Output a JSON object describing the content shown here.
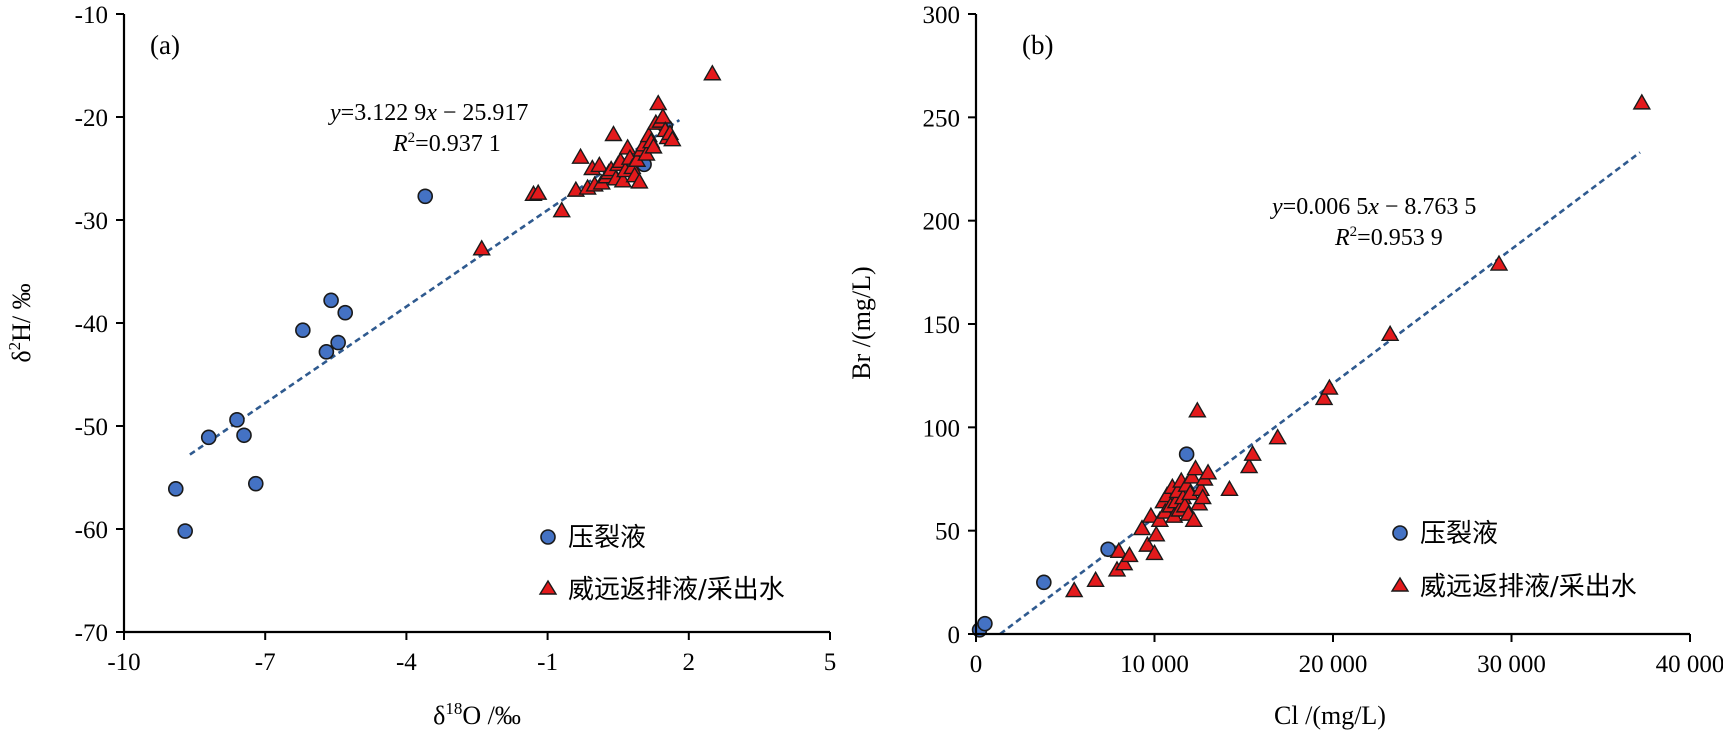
{
  "chart_data": [
    {
      "type": "scatter",
      "panel_label": "(a)",
      "xlabel_parts": {
        "pre": "δ",
        "sup": "18",
        "post": "O /‰"
      },
      "ylabel_parts": {
        "pre": "δ",
        "sup": "2",
        "post": "H/ ‰"
      },
      "xlim": [
        -10,
        5
      ],
      "ylim": [
        -70,
        -10
      ],
      "xticks": [
        -10,
        -7,
        -4,
        -1,
        2,
        5
      ],
      "yticks": [
        -70,
        -60,
        -50,
        -40,
        -30,
        -20,
        -10
      ],
      "equation": {
        "y": "y",
        "rest": "=3.122 9",
        "x": "x",
        "tail": " − 25.917",
        "r": "R",
        "rsup": "2",
        "rval": "=0.937 1"
      },
      "trendline": {
        "slope": 3.1229,
        "intercept": -25.917,
        "x_range": [
          -8.6,
          1.8
        ]
      },
      "legend": [
        {
          "marker": "circle",
          "label": "压裂液"
        },
        {
          "marker": "triangle",
          "label": "威远返排液/采出水"
        }
      ],
      "legend_position": "bottom-right",
      "series": [
        {
          "marker": "circle",
          "color": "#4472C4",
          "points": [
            [
              -8.9,
              -56.1
            ],
            [
              -8.7,
              -60.2
            ],
            [
              -8.2,
              -51.1
            ],
            [
              -7.6,
              -49.4
            ],
            [
              -7.45,
              -50.9
            ],
            [
              -7.2,
              -55.6
            ],
            [
              -6.2,
              -40.7
            ],
            [
              -5.7,
              -42.8
            ],
            [
              -5.6,
              -37.8
            ],
            [
              -5.45,
              -41.9
            ],
            [
              -5.3,
              -39.0
            ],
            [
              -3.6,
              -27.7
            ],
            [
              1.05,
              -24.6
            ],
            [
              1.5,
              -20.9
            ]
          ]
        },
        {
          "marker": "triangle",
          "color": "#E31A1C",
          "points": [
            [
              -2.4,
              -32.8
            ],
            [
              -1.3,
              -27.5
            ],
            [
              -1.2,
              -27.4
            ],
            [
              -0.7,
              -29.1
            ],
            [
              -0.4,
              -27.1
            ],
            [
              -0.3,
              -23.9
            ],
            [
              -0.15,
              -26.9
            ],
            [
              -0.05,
              -25.0
            ],
            [
              0.0,
              -26.6
            ],
            [
              0.1,
              -24.7
            ],
            [
              0.15,
              -26.4
            ],
            [
              0.25,
              -25.8
            ],
            [
              0.3,
              -25.4
            ],
            [
              0.35,
              -25.1
            ],
            [
              0.4,
              -21.7
            ],
            [
              0.45,
              -26.0
            ],
            [
              0.5,
              -24.6
            ],
            [
              0.55,
              -24.3
            ],
            [
              0.6,
              -26.2
            ],
            [
              0.65,
              -25.2
            ],
            [
              0.7,
              -23.0
            ],
            [
              0.75,
              -24.0
            ],
            [
              0.8,
              -24.9
            ],
            [
              0.85,
              -25.7
            ],
            [
              0.9,
              -24.2
            ],
            [
              0.95,
              -26.3
            ],
            [
              1.0,
              -23.2
            ],
            [
              1.05,
              -22.7
            ],
            [
              1.1,
              -23.6
            ],
            [
              1.15,
              -21.8
            ],
            [
              1.2,
              -22.4
            ],
            [
              1.25,
              -22.9
            ],
            [
              1.3,
              -20.6
            ],
            [
              1.35,
              -18.7
            ],
            [
              1.4,
              -20.4
            ],
            [
              1.45,
              -20.0
            ],
            [
              1.5,
              -21.3
            ],
            [
              1.55,
              -22.0
            ],
            [
              1.6,
              -21.6
            ],
            [
              1.65,
              -22.2
            ],
            [
              2.5,
              -15.8
            ]
          ]
        }
      ]
    },
    {
      "type": "scatter",
      "panel_label": "(b)",
      "xlabel": "Cl /(mg/L)",
      "ylabel": "Br /(mg/L)",
      "xlim": [
        0,
        40000
      ],
      "ylim": [
        0,
        300
      ],
      "xticks": [
        0,
        10000,
        20000,
        30000,
        40000
      ],
      "xtick_labels": [
        "0",
        "10 000",
        "20 000",
        "30 000",
        "40 000"
      ],
      "yticks": [
        0,
        50,
        100,
        150,
        200,
        250,
        300
      ],
      "equation": {
        "y": "y",
        "rest": "=0.006 5",
        "x": "x",
        "tail": " − 8.763 5",
        "r": "R",
        "rsup": "2",
        "rval": "=0.953 9"
      },
      "trendline": {
        "slope": 0.0065,
        "intercept": -8.7635,
        "x_range": [
          1350,
          37200
        ]
      },
      "legend": [
        {
          "marker": "circle",
          "label": "压裂液"
        },
        {
          "marker": "triangle",
          "label": "威远返排液/采出水"
        }
      ],
      "legend_position": "bottom-right",
      "series": [
        {
          "marker": "circle",
          "color": "#4472C4",
          "points": [
            [
              200,
              2
            ],
            [
              500,
              5
            ],
            [
              3800,
              25
            ],
            [
              7400,
              41
            ],
            [
              11800,
              87
            ]
          ]
        },
        {
          "marker": "triangle",
          "color": "#E31A1C",
          "points": [
            [
              5500,
              21
            ],
            [
              6700,
              26
            ],
            [
              7900,
              31
            ],
            [
              8000,
              40
            ],
            [
              8300,
              34
            ],
            [
              8600,
              38
            ],
            [
              9300,
              51
            ],
            [
              9600,
              43
            ],
            [
              9800,
              57
            ],
            [
              10000,
              39
            ],
            [
              10100,
              48
            ],
            [
              10300,
              55
            ],
            [
              10500,
              64
            ],
            [
              10600,
              59
            ],
            [
              10700,
              67
            ],
            [
              10900,
              62
            ],
            [
              11000,
              71
            ],
            [
              11100,
              57
            ],
            [
              11200,
              64
            ],
            [
              11300,
              69
            ],
            [
              11400,
              60
            ],
            [
              11500,
              74
            ],
            [
              11600,
              66
            ],
            [
              11700,
              62
            ],
            [
              11800,
              72
            ],
            [
              11900,
              58
            ],
            [
              12000,
              68
            ],
            [
              12100,
              76
            ],
            [
              12200,
              55
            ],
            [
              12300,
              80
            ],
            [
              12400,
              108
            ],
            [
              12500,
              63
            ],
            [
              12600,
              70
            ],
            [
              12700,
              66
            ],
            [
              12800,
              75
            ],
            [
              13000,
              78
            ],
            [
              14200,
              70
            ],
            [
              15300,
              81
            ],
            [
              15500,
              87
            ],
            [
              16900,
              95
            ],
            [
              19500,
              114
            ],
            [
              19800,
              119
            ],
            [
              23200,
              145
            ],
            [
              29300,
              179
            ],
            [
              37300,
              257
            ]
          ]
        }
      ]
    }
  ]
}
